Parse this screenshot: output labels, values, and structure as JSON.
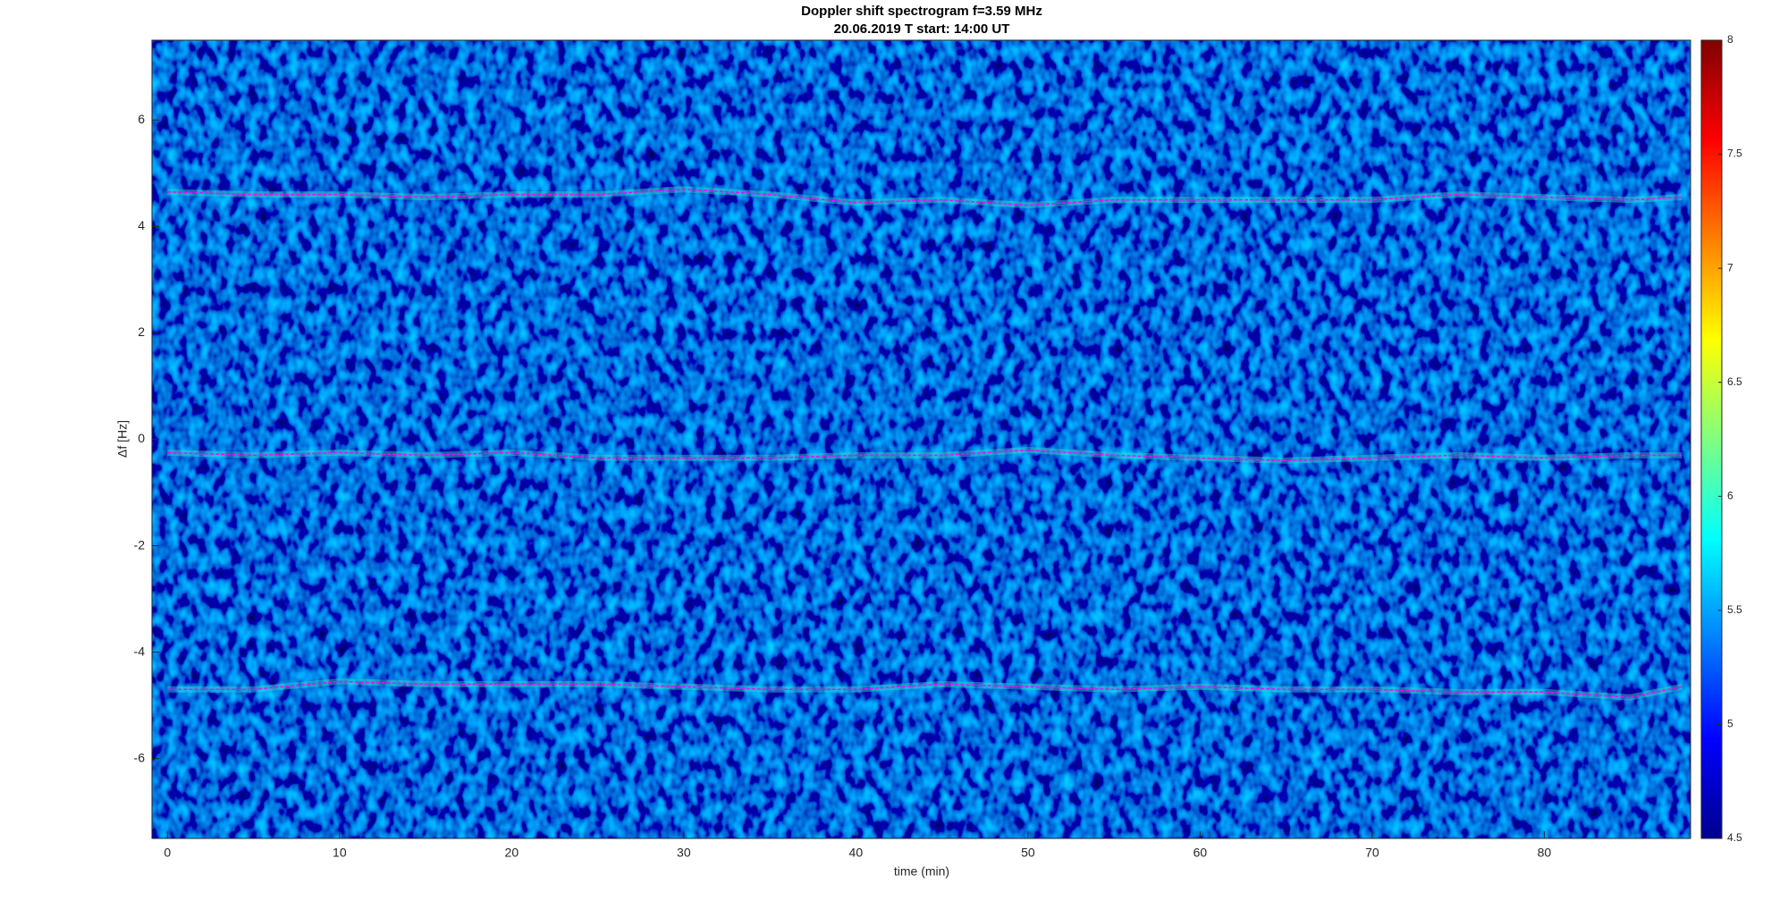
{
  "chart_data": {
    "type": "spectrogram",
    "title": "Doppler shift spectrogram f=3.59 MHz",
    "subtitle": "20.06.2019   T start: 14:00 UT",
    "x_label": "time (min)",
    "y_label": "Δf [Hz]",
    "xlim": [
      -0.9,
      88.5
    ],
    "ylim": [
      -7.5,
      7.5
    ],
    "xticks": [
      0,
      10,
      20,
      30,
      40,
      50,
      60,
      70,
      80
    ],
    "yticks": [
      -6,
      -4,
      -2,
      0,
      2,
      4,
      6
    ],
    "colormap": "jet",
    "clim": [
      4.5,
      8
    ],
    "cticks": [
      4.5,
      5,
      5.5,
      6,
      6.5,
      7,
      7.5,
      8
    ],
    "x": [
      0,
      5,
      10,
      15,
      20,
      25,
      30,
      35,
      40,
      45,
      50,
      55,
      60,
      65,
      70,
      75,
      80,
      85,
      88
    ],
    "series": [
      {
        "color": "#ff00ff",
        "values": [
          4.65,
          4.6,
          4.6,
          4.55,
          4.6,
          4.6,
          4.7,
          4.6,
          4.45,
          4.5,
          4.4,
          4.5,
          4.5,
          4.5,
          4.5,
          4.6,
          4.55,
          4.5,
          4.55
        ]
      },
      {
        "color": "#ff00ff",
        "values": [
          -0.25,
          -0.3,
          -0.25,
          -0.3,
          -0.25,
          -0.35,
          -0.35,
          -0.35,
          -0.3,
          -0.3,
          -0.2,
          -0.3,
          -0.35,
          -0.4,
          -0.35,
          -0.3,
          -0.35,
          -0.3,
          -0.3
        ]
      },
      {
        "color": "#ff00ff",
        "values": [
          -4.7,
          -4.7,
          -4.55,
          -4.6,
          -4.6,
          -4.6,
          -4.65,
          -4.7,
          -4.7,
          -4.6,
          -4.65,
          -4.7,
          -4.65,
          -4.7,
          -4.7,
          -4.75,
          -4.75,
          -4.85,
          -4.65
        ]
      }
    ]
  }
}
